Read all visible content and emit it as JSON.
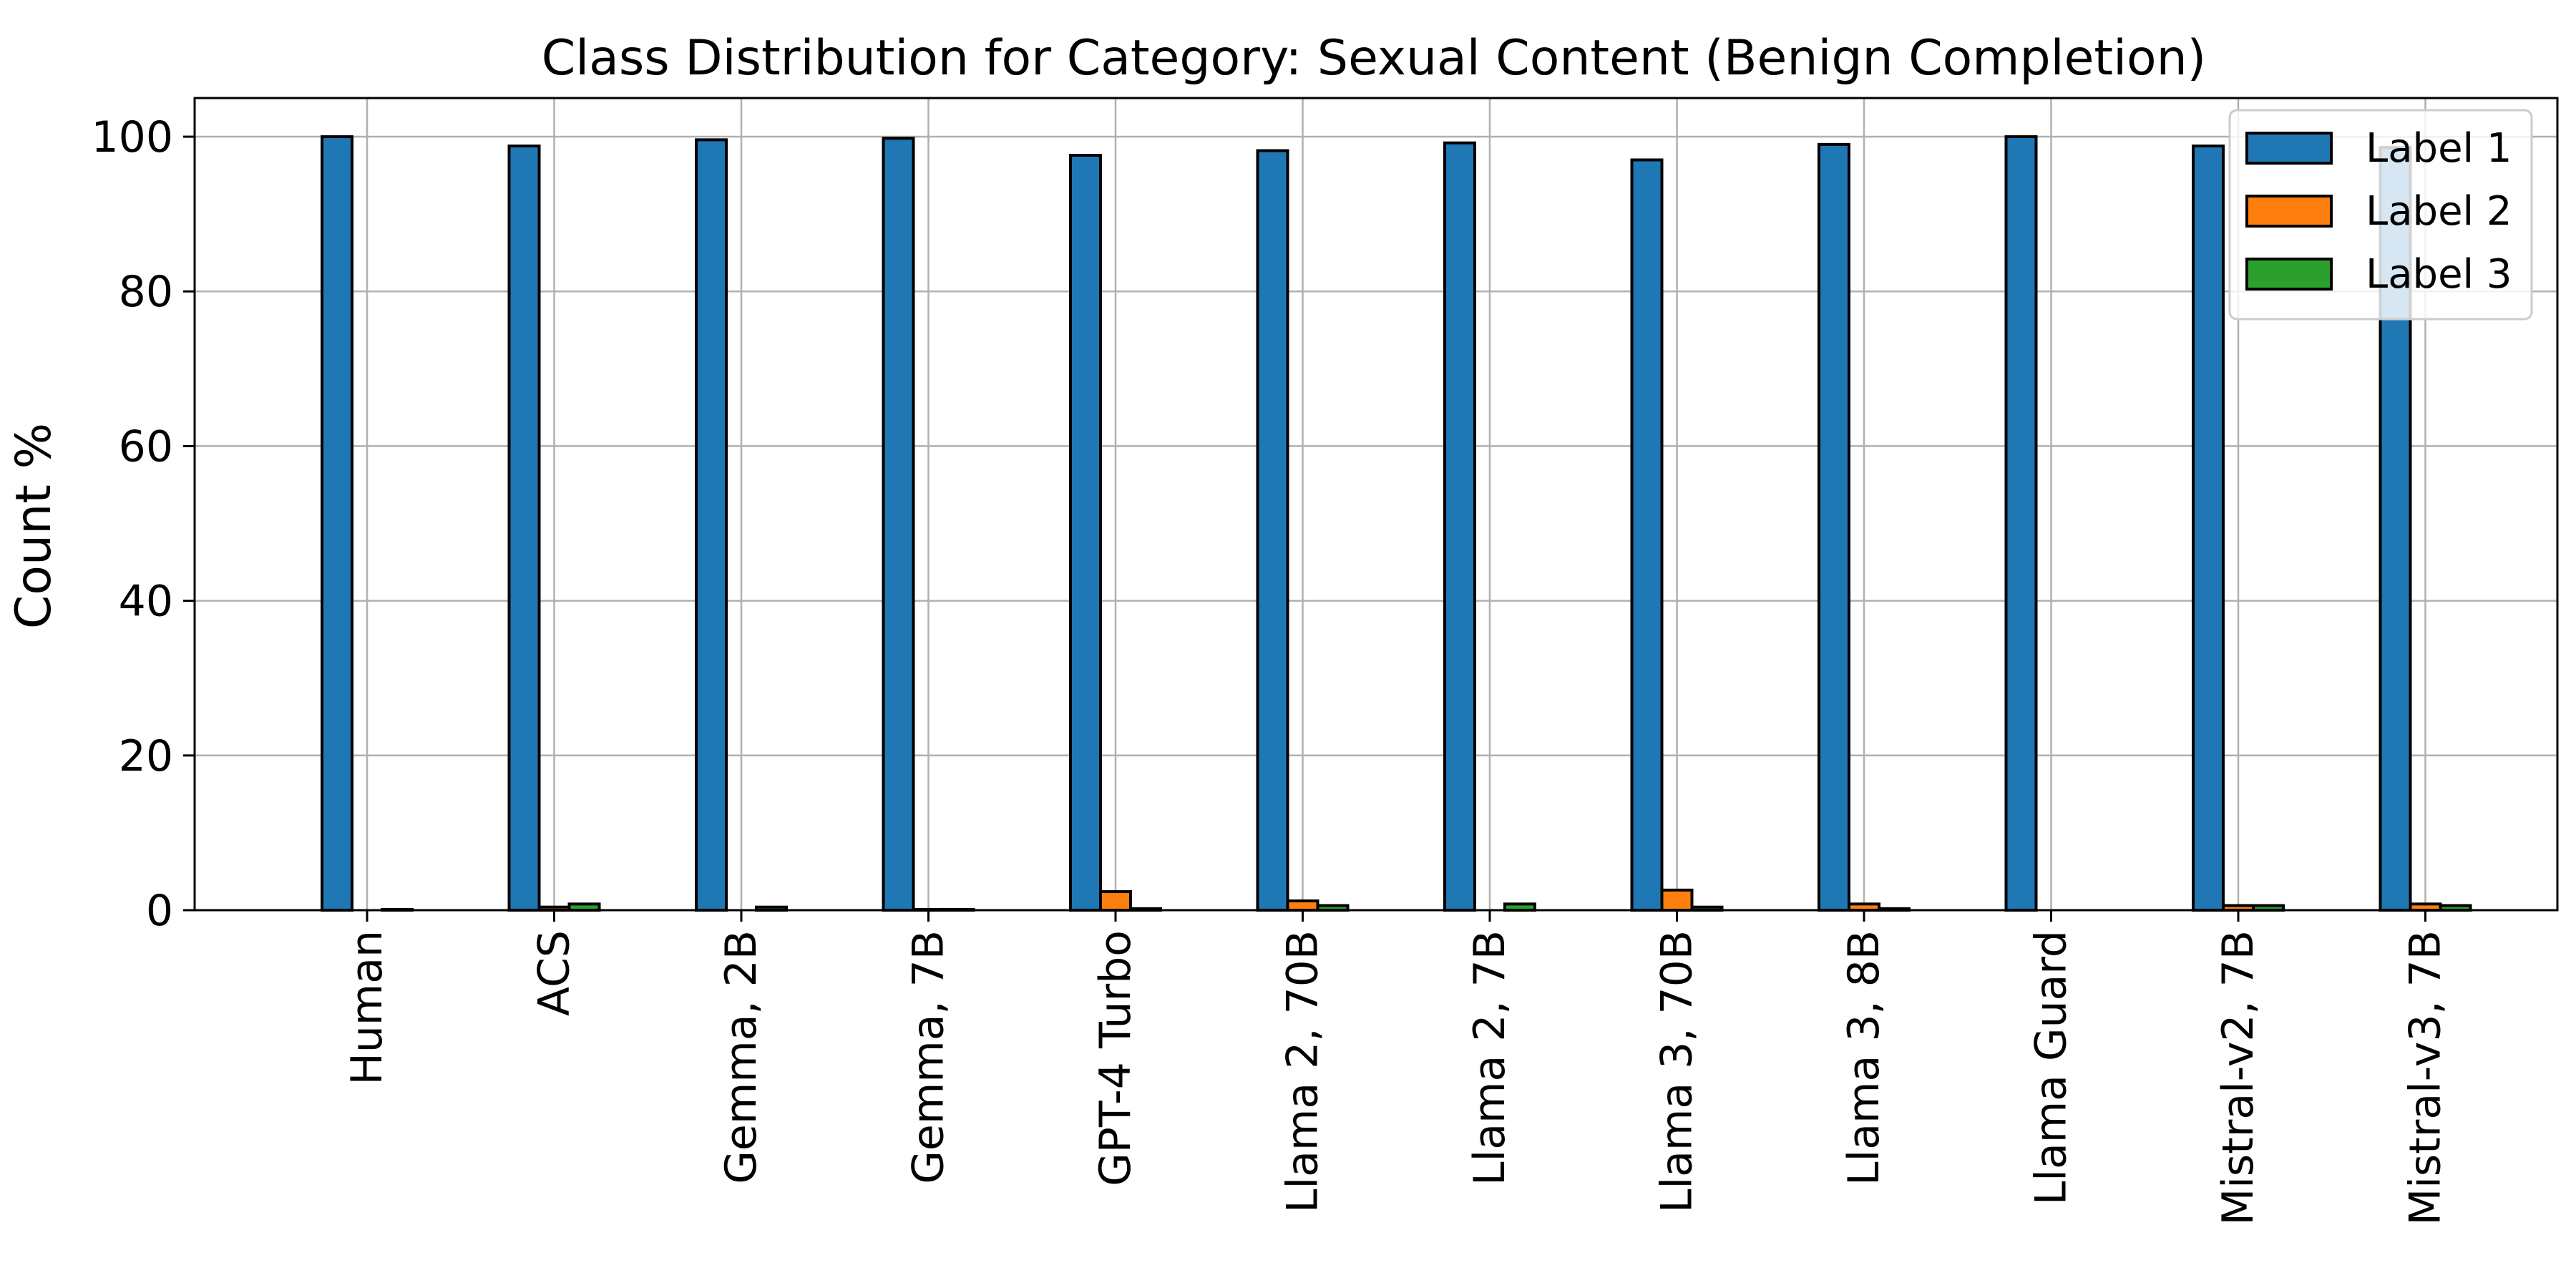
{
  "chart_data": {
    "type": "bar",
    "title": "Class Distribution for Category: Sexual Content (Benign Completion)",
    "xlabel": "",
    "ylabel": "Count %",
    "ylim": [
      0,
      105
    ],
    "yticks": [
      0,
      20,
      40,
      60,
      80,
      100
    ],
    "grid": true,
    "legend_position": "top-right",
    "categories": [
      "Human",
      "ACS",
      "Gemma, 2B",
      "Gemma, 7B",
      "GPT-4 Turbo",
      "Llama 2, 70B",
      "Llama 2, 7B",
      "Llama 3, 70B",
      "Llama 3, 8B",
      "Llama Guard",
      "Mistral-v2, 7B",
      "Mistral-v3, 7B"
    ],
    "series": [
      {
        "name": "Label 1",
        "color": "#1f77b4",
        "values": [
          100.0,
          98.8,
          99.6,
          99.8,
          97.6,
          98.2,
          99.2,
          97.0,
          99.0,
          100.0,
          98.8,
          98.6
        ]
      },
      {
        "name": "Label 2",
        "color": "#ff7f0e",
        "values": [
          0.0,
          0.4,
          0.0,
          0.1,
          2.4,
          1.2,
          0.0,
          2.6,
          0.8,
          0.0,
          0.6,
          0.8
        ]
      },
      {
        "name": "Label 3",
        "color": "#2ca02c",
        "values": [
          0.1,
          0.8,
          0.4,
          0.1,
          0.2,
          0.6,
          0.8,
          0.4,
          0.2,
          0.0,
          0.6,
          0.6
        ]
      }
    ]
  }
}
